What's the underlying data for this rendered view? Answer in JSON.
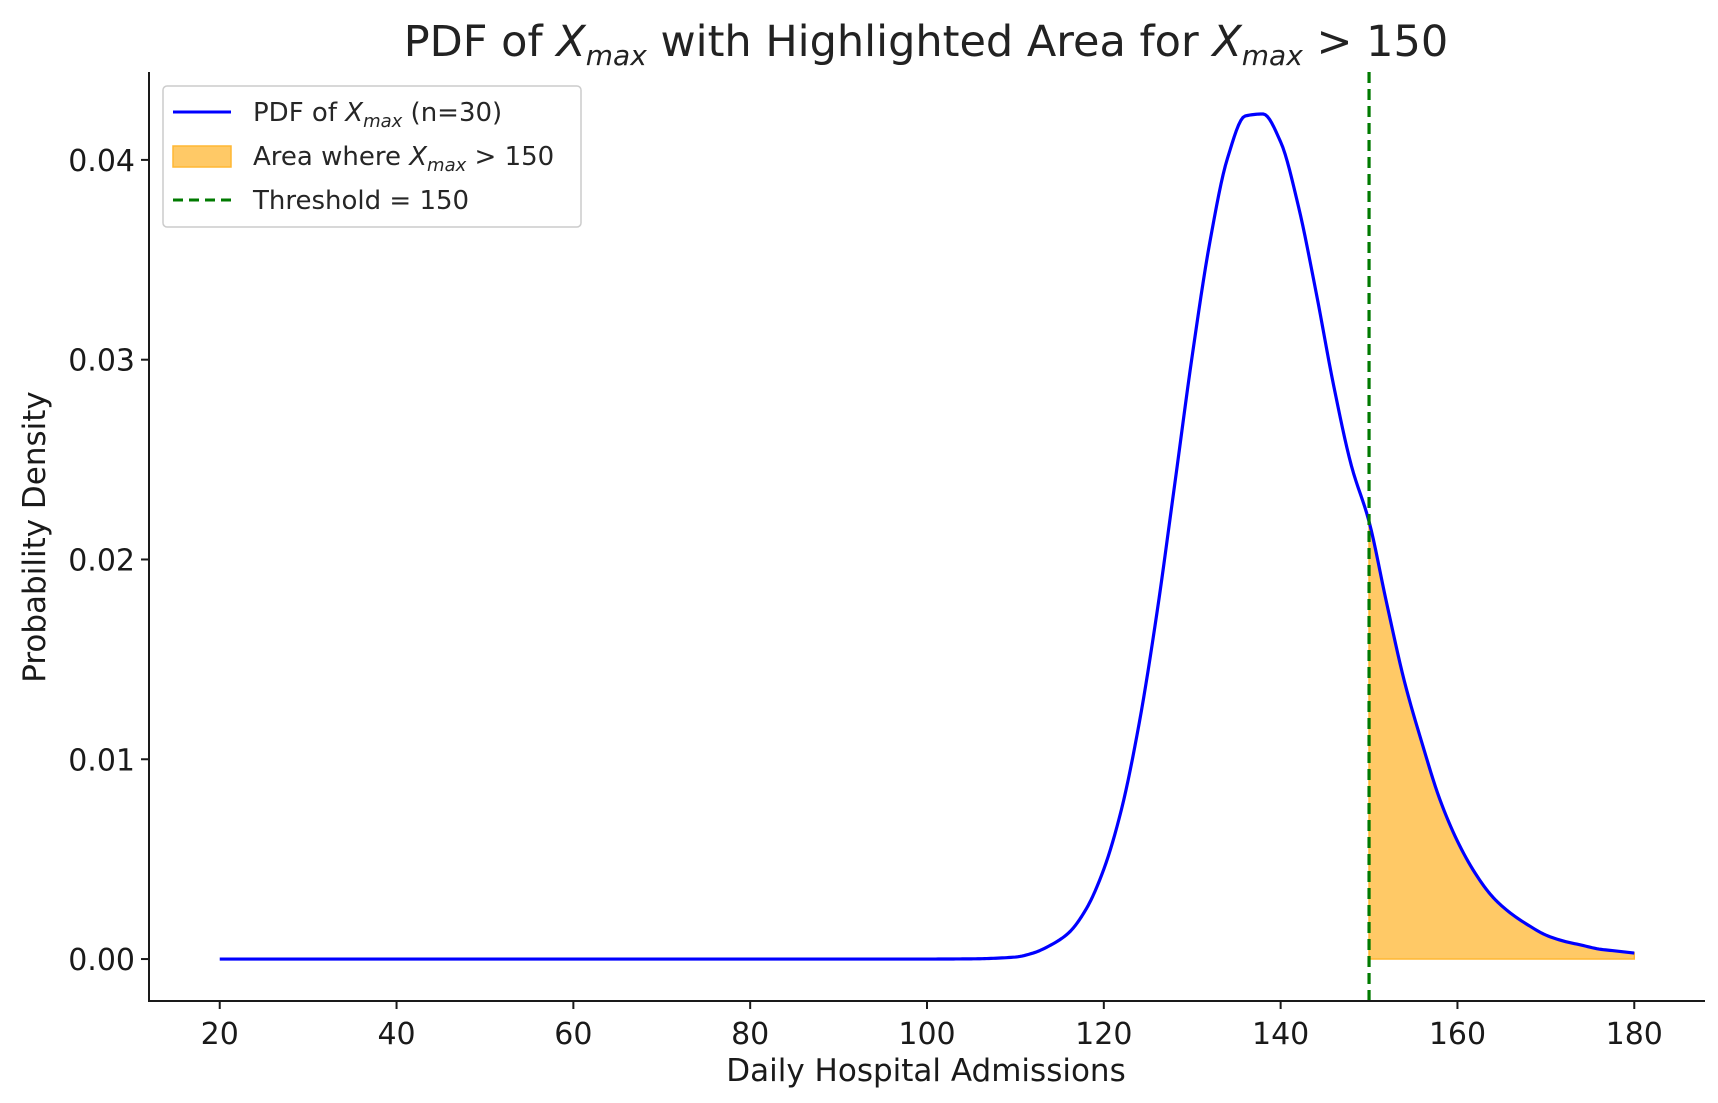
{
  "colors": {
    "pdf_line": "#0000ff",
    "area_fill": "#ffc966",
    "area_edge": "#ffb733",
    "threshold_line": "#007a00",
    "axis": "#1a1a1a"
  },
  "chart_data": {
    "type": "line",
    "title": {
      "prefix": "PDF of ",
      "var": "X",
      "sub": "max",
      "middle": " with Highlighted Area for ",
      "var2": "X",
      "sub2": "max",
      "suffix": " > 150"
    },
    "xlabel": "Daily Hospital Admissions",
    "ylabel": "Probability Density",
    "xlim": [
      12,
      188
    ],
    "ylim": [
      -0.0021,
      0.0444
    ],
    "x_ticks": [
      20,
      40,
      60,
      80,
      100,
      120,
      140,
      160,
      180
    ],
    "x_tick_labels": [
      "20",
      "40",
      "60",
      "80",
      "100",
      "120",
      "140",
      "160",
      "180"
    ],
    "y_ticks": [
      0.0,
      0.01,
      0.02,
      0.03,
      0.04
    ],
    "y_tick_labels": [
      "0.00",
      "0.01",
      "0.02",
      "0.03",
      "0.04"
    ],
    "grid": false,
    "legend_position": "top-left",
    "legend": {
      "pdf": {
        "prefix": "PDF of ",
        "var": "X",
        "sub": "max",
        "suffix": " (n=30)"
      },
      "area": {
        "prefix": "Area where ",
        "var": "X",
        "sub": "max",
        "suffix": " > 150"
      },
      "threshold": {
        "text": "Threshold = 150"
      }
    },
    "threshold": 150,
    "series": [
      {
        "name": "PDF of X_max (n=30)",
        "x": [
          20,
          40,
          60,
          80,
          100,
          105,
          110,
          112,
          114,
          116,
          118,
          120,
          122,
          124,
          126,
          128,
          130,
          132,
          134,
          136,
          138,
          140,
          142,
          144,
          146,
          148,
          150,
          152,
          154,
          156,
          158,
          160,
          162,
          164,
          166,
          168,
          170,
          172,
          174,
          176,
          178,
          180
        ],
        "y": [
          0.0,
          0.0,
          0.0,
          0.0,
          0.0,
          1e-05,
          0.0001,
          0.0003,
          0.0007,
          0.0013,
          0.0025,
          0.0045,
          0.0075,
          0.0118,
          0.0173,
          0.0237,
          0.0302,
          0.0359,
          0.0401,
          0.0422,
          0.0423,
          0.0409,
          0.0377,
          0.0334,
          0.0287,
          0.0247,
          0.0219,
          0.0178,
          0.0139,
          0.0108,
          0.008,
          0.0059,
          0.0043,
          0.0031,
          0.0023,
          0.0017,
          0.0012,
          0.0009,
          0.0007,
          0.0005,
          0.0004,
          0.0003
        ]
      }
    ],
    "shaded_region": {
      "from": 150,
      "to": 180
    }
  }
}
